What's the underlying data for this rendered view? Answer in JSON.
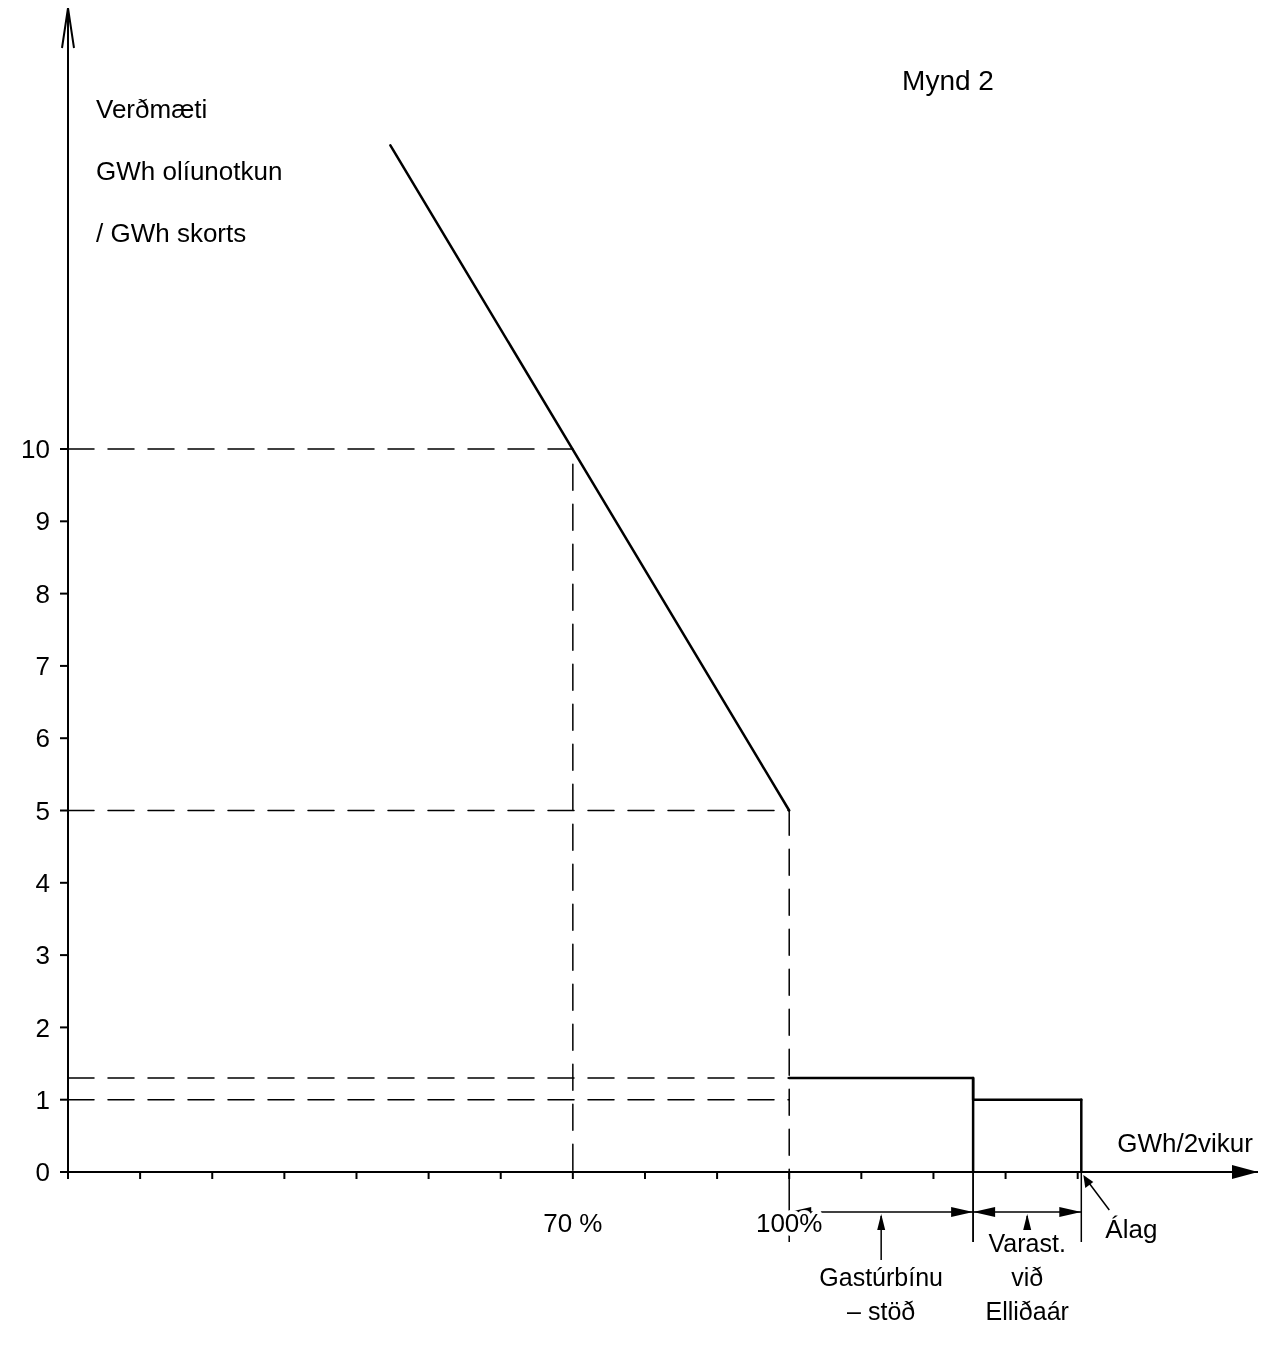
{
  "chart_data": {
    "type": "line",
    "title": "Mynd 2",
    "ylabel": "Verðmæti\nGWh olíunotkun\n/ GWh skorts",
    "xlabel": "GWh/2vikur",
    "xlim": [
      0,
      165
    ],
    "ylim": [
      0,
      16.1
    ],
    "xticks": [
      {
        "value": 0,
        "label": null
      },
      {
        "value": 10,
        "label": null
      },
      {
        "value": 20,
        "label": null
      },
      {
        "value": 30,
        "label": null
      },
      {
        "value": 40,
        "label": null
      },
      {
        "value": 50,
        "label": null
      },
      {
        "value": 60,
        "label": null
      },
      {
        "value": 70,
        "label": "70 %"
      },
      {
        "value": 80,
        "label": null
      },
      {
        "value": 90,
        "label": null
      },
      {
        "value": 100,
        "label": "100%"
      },
      {
        "value": 110,
        "label": null
      },
      {
        "value": 120,
        "label": null
      },
      {
        "value": 130,
        "label": null
      },
      {
        "value": 140,
        "label": null
      }
    ],
    "yticks": [
      0,
      1,
      2,
      3,
      4,
      5,
      6,
      7,
      8,
      9,
      10
    ],
    "marker": "none",
    "grid": false,
    "series": [
      {
        "color": "#000000",
        "x": [
          44.7,
          100
        ],
        "values": [
          14.2,
          5
        ],
        "line_style": "solid"
      },
      {
        "type": "step",
        "color": "#000000",
        "x": [
          100,
          125.5,
          140.5
        ],
        "values": [
          1.3,
          1,
          1
        ],
        "line_style": "solid"
      },
      {
        "color": "#000000",
        "x": [
          125.5,
          125.5
        ],
        "values": [
          0,
          1.3
        ],
        "line_style": "solid"
      },
      {
        "color": "#000000",
        "x": [
          140.5,
          140.5
        ],
        "values": [
          0,
          1
        ],
        "line_style": "solid"
      },
      {
        "color": "#000000",
        "x": [
          0,
          70,
          70
        ],
        "values": [
          10,
          10,
          0
        ],
        "line_style": "dashed"
      },
      {
        "color": "#000000",
        "x": [
          0,
          100,
          100
        ],
        "values": [
          5,
          5,
          0
        ],
        "line_style": "dashed"
      },
      {
        "color": "#000000",
        "x": [
          0,
          100
        ],
        "values": [
          1.3,
          1.3
        ],
        "line_style": "dashed"
      },
      {
        "color": "#000000",
        "x": [
          0,
          100
        ],
        "values": [
          1,
          1
        ],
        "line_style": "dashed"
      }
    ],
    "annotations": [
      "Gastúrbínu\n– stöð",
      "Varast.\nvið\nElliðaár",
      "Álag"
    ]
  }
}
